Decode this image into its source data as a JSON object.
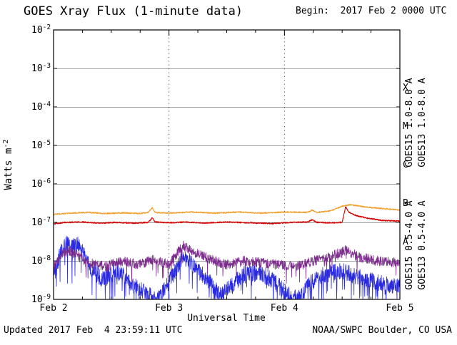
{
  "header": {
    "title": "GOES Xray Flux (1-minute data)",
    "begin": "Begin:  2017 Feb 2 0000 UTC"
  },
  "footer": {
    "updated": "Updated 2017 Feb  4 23:59:11 UTC",
    "credit": "NOAA/SWPC Boulder, CO USA"
  },
  "axes": {
    "xlabel": "Universal Time",
    "ylabel_main": "Watts m",
    "ylabel_sup": "-2"
  },
  "flare_classes": [
    "X",
    "M",
    "C",
    "B",
    "A"
  ],
  "right_labels": [
    {
      "text": "GOES15 1.0-8.0 A",
      "color": "#d40000"
    },
    {
      "text": "GOES13 1.0-8.0 A",
      "color": "#f0a030"
    },
    {
      "text": "GOES15 0.5-4.0 A",
      "color": "#7d2e8d"
    },
    {
      "text": "GOES13 0.5-4.0 A",
      "color": "#2a2ae0"
    }
  ],
  "chart_data": {
    "type": "line",
    "title": "GOES Xray Flux (1-minute data)",
    "xlabel": "Universal Time",
    "ylabel": "Watts m^-2",
    "x_range_days": [
      0,
      3
    ],
    "x_tick_days": [
      0,
      1,
      2,
      3
    ],
    "x_tick_labels": [
      "Feb 2",
      "Feb 3",
      "Feb 4",
      "Feb 5"
    ],
    "x_minor_step_days": 0.25,
    "y_log_range": [
      -9,
      -2
    ],
    "y_tick_exponents": [
      -2,
      -3,
      -4,
      -5,
      -6,
      -7,
      -8,
      -9
    ],
    "grid_vertical_days": [
      1,
      2
    ],
    "flare_class_log_centers": {
      "X": -3.5,
      "M": -4.5,
      "C": -5.5,
      "B": -6.5,
      "A": -7.5
    },
    "samples_per_day": 480,
    "seed": 20170204,
    "series": [
      {
        "name": "GOES13 0.5-4.0 A",
        "satellite": "GOES13",
        "band": "0.5-4.0 A",
        "color": "#2a2ae0",
        "width": 0.8,
        "noise_log": 0.22,
        "dip_prob": 0.1,
        "dip_depth": 0.85,
        "points_log10": [
          [
            0.0,
            -8.4
          ],
          [
            0.05,
            -7.9
          ],
          [
            0.1,
            -7.5
          ],
          [
            0.16,
            -7.65
          ],
          [
            0.22,
            -7.55
          ],
          [
            0.3,
            -8.1
          ],
          [
            0.42,
            -8.5
          ],
          [
            0.55,
            -8.25
          ],
          [
            0.68,
            -8.6
          ],
          [
            0.8,
            -8.85
          ],
          [
            0.9,
            -9.0
          ],
          [
            0.97,
            -8.7
          ],
          [
            1.05,
            -8.3
          ],
          [
            1.12,
            -7.85
          ],
          [
            1.22,
            -8.15
          ],
          [
            1.35,
            -8.55
          ],
          [
            1.45,
            -8.9
          ],
          [
            1.55,
            -8.6
          ],
          [
            1.65,
            -8.35
          ],
          [
            1.78,
            -8.3
          ],
          [
            1.9,
            -8.5
          ],
          [
            2.02,
            -8.85
          ],
          [
            2.12,
            -9.0
          ],
          [
            2.22,
            -8.6
          ],
          [
            2.35,
            -8.35
          ],
          [
            2.5,
            -8.25
          ],
          [
            2.62,
            -8.4
          ],
          [
            2.78,
            -8.55
          ],
          [
            2.92,
            -8.65
          ],
          [
            3.0,
            -8.6
          ]
        ]
      },
      {
        "name": "GOES15 0.5-4.0 A",
        "satellite": "GOES15",
        "band": "0.5-4.0 A",
        "color": "#7d2e8d",
        "width": 0.8,
        "noise_log": 0.13,
        "dip_prob": 0.05,
        "dip_depth": 0.45,
        "points_log10": [
          [
            0.0,
            -8.15
          ],
          [
            0.06,
            -7.85
          ],
          [
            0.12,
            -7.7
          ],
          [
            0.2,
            -7.85
          ],
          [
            0.3,
            -8.05
          ],
          [
            0.45,
            -8.15
          ],
          [
            0.6,
            -8.0
          ],
          [
            0.75,
            -8.1
          ],
          [
            0.86,
            -7.95
          ],
          [
            1.0,
            -8.1
          ],
          [
            1.12,
            -7.6
          ],
          [
            1.2,
            -7.75
          ],
          [
            1.35,
            -7.95
          ],
          [
            1.5,
            -8.1
          ],
          [
            1.65,
            -8.0
          ],
          [
            1.8,
            -8.05
          ],
          [
            1.95,
            -8.1
          ],
          [
            2.1,
            -8.15
          ],
          [
            2.25,
            -8.0
          ],
          [
            2.4,
            -7.9
          ],
          [
            2.53,
            -7.7
          ],
          [
            2.65,
            -7.9
          ],
          [
            2.8,
            -8.0
          ],
          [
            3.0,
            -8.05
          ]
        ]
      },
      {
        "name": "GOES15 1.0-8.0 A",
        "satellite": "GOES15",
        "band": "1.0-8.0 A",
        "color": "#d40000",
        "width": 1.1,
        "noise_log": 0.016,
        "dip_prob": 0,
        "dip_depth": 0,
        "points_log10": [
          [
            0.0,
            -7.04
          ],
          [
            0.1,
            -7.0
          ],
          [
            0.25,
            -6.99
          ],
          [
            0.4,
            -7.02
          ],
          [
            0.55,
            -7.0
          ],
          [
            0.7,
            -7.02
          ],
          [
            0.82,
            -7.0
          ],
          [
            0.855,
            -6.88
          ],
          [
            0.88,
            -6.99
          ],
          [
            1.0,
            -7.01
          ],
          [
            1.15,
            -6.99
          ],
          [
            1.3,
            -7.02
          ],
          [
            1.5,
            -6.99
          ],
          [
            1.7,
            -7.01
          ],
          [
            1.9,
            -7.03
          ],
          [
            2.05,
            -7.0
          ],
          [
            2.2,
            -6.99
          ],
          [
            2.24,
            -6.93
          ],
          [
            2.28,
            -7.0
          ],
          [
            2.4,
            -7.01
          ],
          [
            2.5,
            -7.0
          ],
          [
            2.53,
            -6.6
          ],
          [
            2.56,
            -6.74
          ],
          [
            2.62,
            -6.82
          ],
          [
            2.72,
            -6.89
          ],
          [
            2.85,
            -6.95
          ],
          [
            3.0,
            -6.97
          ]
        ]
      },
      {
        "name": "GOES13 1.0-8.0 A",
        "satellite": "GOES13",
        "band": "1.0-8.0 A",
        "color": "#f0a030",
        "width": 1.1,
        "noise_log": 0.016,
        "dip_prob": 0,
        "dip_depth": 0,
        "points_log10": [
          [
            0.0,
            -6.79
          ],
          [
            0.15,
            -6.76
          ],
          [
            0.3,
            -6.74
          ],
          [
            0.45,
            -6.77
          ],
          [
            0.6,
            -6.75
          ],
          [
            0.75,
            -6.77
          ],
          [
            0.82,
            -6.74
          ],
          [
            0.855,
            -6.62
          ],
          [
            0.88,
            -6.74
          ],
          [
            1.0,
            -6.76
          ],
          [
            1.2,
            -6.73
          ],
          [
            1.4,
            -6.76
          ],
          [
            1.6,
            -6.73
          ],
          [
            1.8,
            -6.76
          ],
          [
            2.0,
            -6.73
          ],
          [
            2.2,
            -6.74
          ],
          [
            2.24,
            -6.68
          ],
          [
            2.28,
            -6.74
          ],
          [
            2.4,
            -6.7
          ],
          [
            2.5,
            -6.58
          ],
          [
            2.57,
            -6.54
          ],
          [
            2.7,
            -6.6
          ],
          [
            2.85,
            -6.64
          ],
          [
            3.0,
            -6.68
          ]
        ]
      }
    ]
  }
}
